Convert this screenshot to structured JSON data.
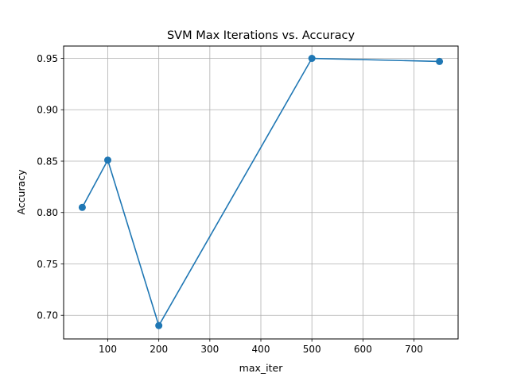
{
  "chart_data": {
    "type": "line",
    "title": "SVM Max Iterations vs. Accuracy",
    "xlabel": "max_iter",
    "ylabel": "Accuracy",
    "xlim": [
      13.5,
      786.5
    ],
    "ylim": [
      0.677,
      0.962
    ],
    "xticks": [
      100,
      200,
      300,
      400,
      500,
      600,
      700
    ],
    "yticks": [
      0.7,
      0.75,
      0.8,
      0.85,
      0.9,
      0.95
    ],
    "xtick_labels": [
      "100",
      "200",
      "300",
      "400",
      "500",
      "600",
      "700"
    ],
    "ytick_labels": [
      "0.70",
      "0.75",
      "0.80",
      "0.85",
      "0.90",
      "0.95"
    ],
    "grid": true,
    "legend": null,
    "series": [
      {
        "color": "#1f77b4",
        "marker": "circle",
        "x": [
          50,
          100,
          200,
          500,
          750
        ],
        "y": [
          0.805,
          0.851,
          0.69,
          0.95,
          0.947
        ]
      }
    ]
  }
}
